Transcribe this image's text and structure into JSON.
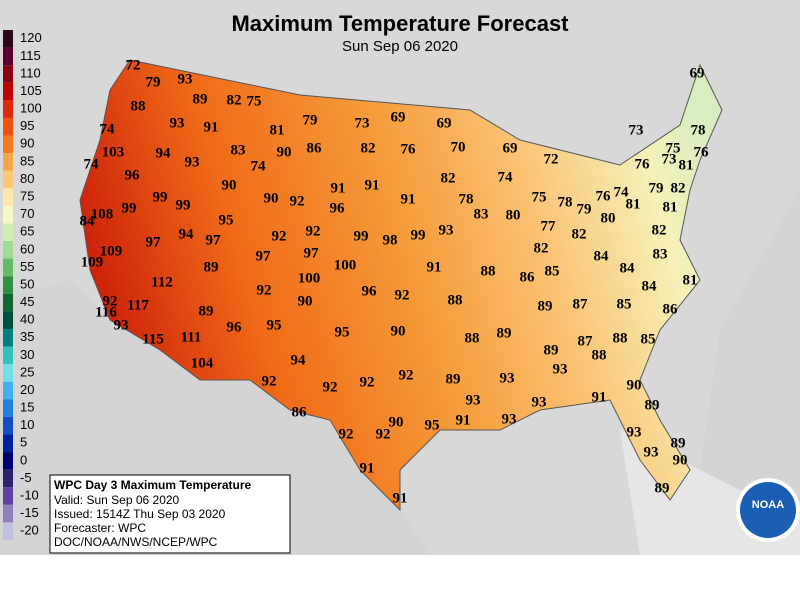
{
  "header": {
    "title": "Maximum Temperature Forecast",
    "subtitle": "Sun Sep 06 2020"
  },
  "legend": {
    "items": [
      {
        "label": 120,
        "color": "#2a0818"
      },
      {
        "label": 115,
        "color": "#5a0030"
      },
      {
        "label": 110,
        "color": "#8a0010"
      },
      {
        "label": 105,
        "color": "#c00000"
      },
      {
        "label": 100,
        "color": "#e02808"
      },
      {
        "label": 95,
        "color": "#f05010"
      },
      {
        "label": 90,
        "color": "#f47820"
      },
      {
        "label": 85,
        "color": "#f8a448"
      },
      {
        "label": 80,
        "color": "#fcc878"
      },
      {
        "label": 75,
        "color": "#fde6a8"
      },
      {
        "label": 70,
        "color": "#f6f6c4"
      },
      {
        "label": 65,
        "color": "#d2f0b0"
      },
      {
        "label": 60,
        "color": "#a0dc90"
      },
      {
        "label": 55,
        "color": "#64bc64"
      },
      {
        "label": 50,
        "color": "#309040"
      },
      {
        "label": 45,
        "color": "#106830"
      },
      {
        "label": 40,
        "color": "#005040"
      },
      {
        "label": 35,
        "color": "#008080"
      },
      {
        "label": 30,
        "color": "#30c0c0"
      },
      {
        "label": 25,
        "color": "#70e0e8"
      },
      {
        "label": 20,
        "color": "#40b0f0"
      },
      {
        "label": 15,
        "color": "#2080e0"
      },
      {
        "label": 10,
        "color": "#1050c0"
      },
      {
        "label": 5,
        "color": "#0020a0"
      },
      {
        "label": 0,
        "color": "#000070"
      },
      {
        "label": -5,
        "color": "#302070"
      },
      {
        "label": -10,
        "color": "#6040a0"
      },
      {
        "label": -15,
        "color": "#9080c0"
      },
      {
        "label": -20,
        "color": "#c0c0e0"
      }
    ]
  },
  "info_box": {
    "title": "WPC Day 3 Maximum Temperature",
    "lines": [
      "Valid: Sun Sep 06 2020",
      "Issued: 1514Z Thu Sep 03 2020",
      "Forecaster: WPC",
      "DOC/NOAA/NWS/NCEP/WPC"
    ]
  },
  "logo": "NOAA",
  "map_labels": [
    72,
    79,
    93,
    88,
    89,
    82,
    75,
    74,
    93,
    91,
    81,
    79,
    73,
    69,
    69,
    103,
    94,
    93,
    83,
    90,
    86,
    82,
    76,
    70,
    69,
    72,
    74,
    96,
    90,
    74,
    91,
    91,
    82,
    74,
    99,
    99,
    90,
    92,
    96,
    91,
    78,
    75,
    78,
    76,
    74,
    79,
    84,
    108,
    99,
    95,
    92,
    83,
    80,
    77,
    80,
    81,
    79,
    82,
    81,
    73,
    78,
    75,
    76,
    73,
    81,
    76,
    69,
    97,
    94,
    97,
    92,
    99,
    98,
    99,
    93,
    82,
    82,
    82,
    109,
    89,
    97,
    97,
    100,
    91,
    88,
    85,
    86,
    84,
    84,
    83,
    109,
    112,
    100,
    92,
    96,
    92,
    88,
    84,
    81,
    92,
    117,
    116,
    89,
    90,
    89,
    87,
    85,
    86,
    93,
    96,
    95,
    95,
    90,
    88,
    89,
    88,
    85,
    115,
    111,
    87,
    89,
    88,
    104,
    94,
    93,
    92,
    92,
    92,
    92,
    89,
    93,
    90,
    93,
    91,
    93,
    89,
    86,
    93,
    92,
    92,
    90,
    95,
    91,
    93,
    89,
    93,
    90,
    91,
    91,
    89
  ]
}
